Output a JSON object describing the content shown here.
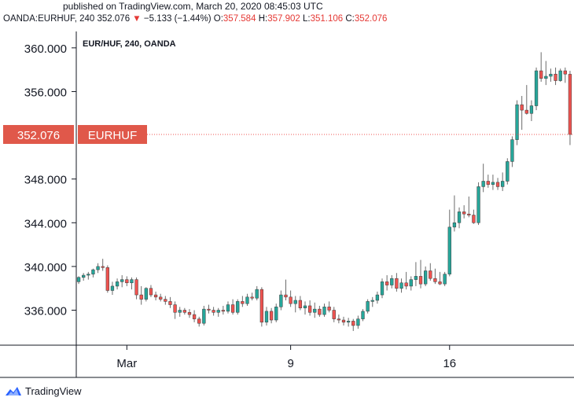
{
  "header": {
    "published": "published on TradingView.com, March 20, 2020 08:45:03 UTC",
    "symbol": "OANDA:EURHUF, 240",
    "last": "352.076",
    "arrow": "▼",
    "change": "−5.133 (−1.44%)",
    "o_label": "O:",
    "o_value": "357.584",
    "h_label": "H:",
    "h_value": "357.902",
    "l_label": "L:",
    "l_value": "351.106",
    "c_label": "C:",
    "c_value": "352.076"
  },
  "footer": {
    "brand": "TradingView"
  },
  "colors": {
    "up": "#26a69a",
    "down": "#ef5350",
    "price_tag": "#e0584a",
    "axis": "#131722"
  },
  "chart_data": {
    "type": "candlestick",
    "title": "EUR/HUF, 240, OANDA",
    "price_tag": {
      "value": "352.076",
      "label": "EURHUF"
    },
    "ylim": [
      332.8,
      361.5
    ],
    "yticks": [
      336,
      340,
      344,
      348,
      352,
      356,
      360
    ],
    "ytick_labels": [
      "336.000",
      "340.000",
      "344.000",
      "348.000",
      "352.076",
      "356.000",
      "360.000"
    ],
    "xticks": [
      {
        "index": 10,
        "label": "Mar"
      },
      {
        "index": 44,
        "label": "9"
      },
      {
        "index": 77,
        "label": "16"
      }
    ],
    "candles": [
      [
        338.6,
        339.1,
        338.4,
        339.0
      ],
      [
        339.0,
        339.4,
        338.7,
        339.2
      ],
      [
        339.2,
        339.5,
        338.8,
        339.3
      ],
      [
        339.3,
        339.8,
        339.0,
        339.7
      ],
      [
        339.7,
        340.3,
        339.4,
        340.0
      ],
      [
        340.0,
        340.7,
        339.6,
        339.9
      ],
      [
        339.9,
        340.1,
        337.6,
        337.8
      ],
      [
        337.8,
        338.6,
        337.4,
        338.2
      ],
      [
        338.2,
        338.9,
        337.9,
        338.6
      ],
      [
        338.6,
        339.2,
        338.1,
        338.8
      ],
      [
        338.8,
        339.1,
        338.2,
        338.5
      ],
      [
        338.5,
        339.0,
        337.9,
        338.8
      ],
      [
        338.8,
        339.0,
        337.0,
        337.4
      ],
      [
        337.4,
        338.2,
        336.5,
        337.0
      ],
      [
        337.0,
        338.1,
        336.8,
        338.0
      ],
      [
        338.0,
        338.3,
        337.2,
        337.4
      ],
      [
        337.4,
        337.7,
        336.9,
        337.2
      ],
      [
        337.2,
        337.5,
        336.8,
        337.0
      ],
      [
        337.0,
        337.3,
        336.5,
        336.8
      ],
      [
        336.8,
        337.2,
        336.2,
        336.5
      ],
      [
        336.5,
        336.8,
        335.2,
        335.8
      ],
      [
        335.8,
        336.3,
        335.4,
        336.0
      ],
      [
        336.0,
        336.2,
        335.6,
        335.8
      ],
      [
        335.8,
        336.1,
        335.3,
        335.6
      ],
      [
        335.6,
        336.0,
        334.9,
        335.2
      ],
      [
        335.2,
        335.4,
        334.5,
        334.8
      ],
      [
        334.8,
        336.4,
        334.6,
        336.1
      ],
      [
        336.1,
        336.5,
        335.7,
        336.0
      ],
      [
        336.0,
        336.3,
        335.5,
        335.8
      ],
      [
        335.8,
        336.2,
        335.4,
        336.0
      ],
      [
        336.0,
        336.4,
        335.6,
        335.9
      ],
      [
        335.9,
        336.8,
        335.7,
        336.5
      ],
      [
        336.5,
        337.0,
        335.6,
        335.8
      ],
      [
        335.8,
        337.0,
        335.6,
        336.8
      ],
      [
        336.8,
        337.3,
        336.3,
        336.6
      ],
      [
        336.6,
        337.5,
        336.4,
        337.2
      ],
      [
        337.2,
        337.6,
        336.9,
        337.1
      ],
      [
        337.1,
        338.2,
        336.9,
        337.9
      ],
      [
        337.9,
        338.1,
        334.5,
        334.9
      ],
      [
        334.9,
        336.3,
        334.6,
        335.9
      ],
      [
        335.9,
        336.2,
        334.8,
        335.1
      ],
      [
        335.1,
        336.6,
        334.9,
        336.3
      ],
      [
        336.3,
        337.8,
        336.0,
        337.4
      ],
      [
        337.4,
        338.8,
        336.9,
        337.2
      ],
      [
        337.2,
        337.8,
        336.3,
        336.6
      ],
      [
        336.6,
        337.3,
        335.8,
        336.9
      ],
      [
        336.9,
        337.3,
        336.0,
        336.2
      ],
      [
        336.2,
        336.8,
        335.6,
        336.4
      ],
      [
        336.4,
        336.9,
        335.5,
        335.8
      ],
      [
        335.8,
        336.7,
        335.3,
        336.1
      ],
      [
        336.1,
        336.4,
        335.4,
        335.6
      ],
      [
        335.6,
        336.6,
        335.4,
        336.3
      ],
      [
        336.3,
        336.8,
        335.8,
        336.0
      ],
      [
        336.0,
        336.3,
        334.9,
        335.2
      ],
      [
        335.2,
        335.6,
        334.8,
        335.1
      ],
      [
        335.1,
        335.4,
        334.6,
        334.9
      ],
      [
        334.9,
        335.3,
        334.5,
        335.0
      ],
      [
        335.0,
        335.2,
        334.1,
        334.6
      ],
      [
        334.6,
        335.5,
        334.3,
        335.2
      ],
      [
        335.2,
        336.1,
        335.0,
        335.9
      ],
      [
        335.9,
        337.0,
        335.7,
        336.8
      ],
      [
        336.8,
        337.2,
        336.3,
        336.9
      ],
      [
        336.9,
        337.7,
        336.6,
        337.4
      ],
      [
        337.4,
        338.9,
        337.1,
        338.6
      ],
      [
        338.6,
        339.2,
        337.8,
        338.3
      ],
      [
        338.3,
        339.2,
        338.0,
        338.9
      ],
      [
        338.9,
        339.4,
        337.7,
        338.0
      ],
      [
        338.0,
        338.9,
        337.6,
        338.5
      ],
      [
        338.5,
        339.5,
        337.9,
        338.2
      ],
      [
        338.2,
        339.1,
        337.8,
        338.8
      ],
      [
        338.8,
        340.4,
        338.2,
        339.1
      ],
      [
        339.1,
        340.6,
        338.0,
        338.4
      ],
      [
        338.4,
        340.0,
        338.2,
        339.6
      ],
      [
        339.6,
        340.3,
        338.7,
        338.9
      ],
      [
        338.9,
        339.8,
        338.4,
        338.6
      ],
      [
        338.6,
        339.5,
        338.3,
        338.4
      ],
      [
        338.4,
        339.5,
        338.2,
        339.3
      ],
      [
        339.3,
        345.2,
        339.1,
        343.6
      ],
      [
        343.6,
        346.5,
        343.2,
        344.0
      ],
      [
        344.0,
        345.4,
        343.5,
        345.0
      ],
      [
        345.0,
        345.6,
        344.4,
        344.8
      ],
      [
        344.8,
        346.4,
        344.5,
        344.7
      ],
      [
        344.7,
        345.2,
        343.9,
        344.0
      ],
      [
        344.0,
        347.7,
        343.8,
        347.3
      ],
      [
        347.3,
        349.4,
        346.8,
        347.8
      ],
      [
        347.8,
        348.4,
        347.2,
        347.5
      ],
      [
        347.5,
        348.4,
        347.0,
        347.7
      ],
      [
        347.7,
        348.1,
        347.0,
        347.3
      ],
      [
        347.3,
        348.6,
        346.9,
        347.8
      ],
      [
        347.8,
        349.9,
        347.5,
        349.6
      ],
      [
        349.6,
        351.9,
        349.1,
        351.6
      ],
      [
        351.6,
        355.2,
        351.1,
        354.8
      ],
      [
        354.8,
        355.6,
        352.5,
        354.3
      ],
      [
        354.3,
        356.6,
        353.9,
        354.0
      ],
      [
        354.0,
        355.2,
        353.3,
        354.7
      ],
      [
        354.7,
        358.2,
        354.3,
        357.9
      ],
      [
        357.9,
        359.6,
        356.9,
        357.2
      ],
      [
        357.2,
        358.8,
        356.6,
        357.4
      ],
      [
        357.4,
        358.1,
        356.9,
        357.6
      ],
      [
        357.6,
        358.2,
        356.6,
        357.0
      ],
      [
        357.0,
        358.1,
        356.9,
        357.9
      ],
      [
        357.9,
        358.2,
        356.8,
        357.6
      ],
      [
        357.584,
        357.902,
        351.106,
        352.076
      ]
    ]
  }
}
